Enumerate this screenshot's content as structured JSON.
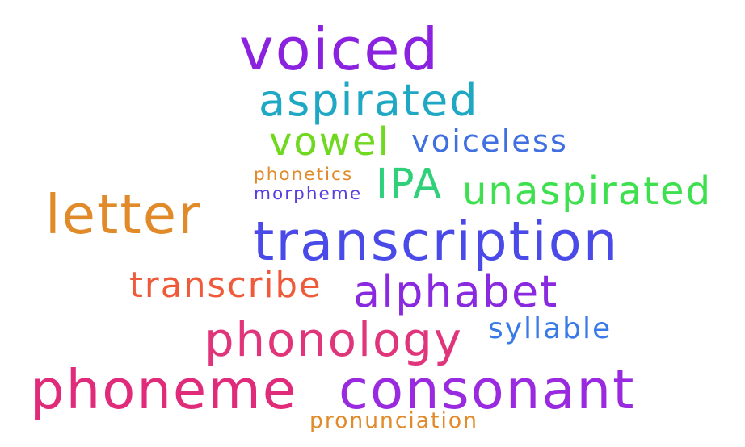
{
  "words": [
    {
      "id": "voiced",
      "text": "voiced",
      "color": "#8a22e0"
    },
    {
      "id": "aspirated",
      "text": "aspirated",
      "color": "#1fa8c4"
    },
    {
      "id": "vowel",
      "text": "vowel",
      "color": "#6fd81f"
    },
    {
      "id": "voiceless",
      "text": "voiceless",
      "color": "#3f6fe0"
    },
    {
      "id": "phonetics",
      "text": "phonetics",
      "color": "#e08a2a"
    },
    {
      "id": "morpheme",
      "text": "morpheme",
      "color": "#5a3fe0"
    },
    {
      "id": "ipa",
      "text": "IPA",
      "color": "#2fd07a"
    },
    {
      "id": "unaspirated",
      "text": "unaspirated",
      "color": "#3fe04f"
    },
    {
      "id": "letter",
      "text": "letter",
      "color": "#e08a2a"
    },
    {
      "id": "transcription",
      "text": "transcription",
      "color": "#4a4ae8"
    },
    {
      "id": "transcribe",
      "text": "transcribe",
      "color": "#ee5a3a"
    },
    {
      "id": "alphabet",
      "text": "alphabet",
      "color": "#8a2ae0"
    },
    {
      "id": "phonology",
      "text": "phonology",
      "color": "#e0357a"
    },
    {
      "id": "syllable",
      "text": "syllable",
      "color": "#3a7ae8"
    },
    {
      "id": "phoneme",
      "text": "phoneme",
      "color": "#e02a7a"
    },
    {
      "id": "consonant",
      "text": "consonant",
      "color": "#9a2ae0"
    },
    {
      "id": "pronunciation",
      "text": "pronunciation",
      "color": "#e08a2a"
    }
  ]
}
